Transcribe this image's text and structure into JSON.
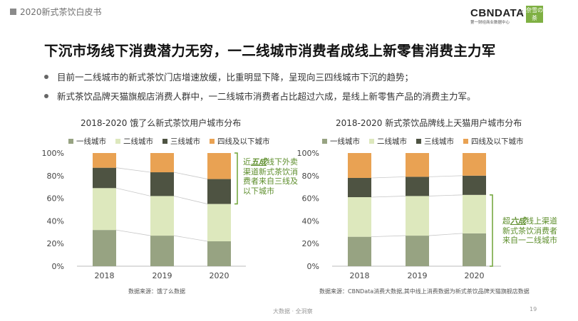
{
  "header": {
    "report_title": "2020新式茶饮白皮书",
    "logo_text": "CBNDATA",
    "logo_sub": "第一财经商业数据中心",
    "logo_x": "×",
    "brand_badge": "奈雪の茶"
  },
  "page_title": "下沉市场线下消费潜力无穷，一二线城市消费者成线上新零售消费主力军",
  "bullets": [
    "目前一二线城市的新式茶饮门店增速放缓，比重明显下降，呈现向三四线城市下沉的趋势；",
    "新式茶饮品牌天猫旗舰店消费人群中，一二线城市消费者占比超过六成，是线上新零售产品的消费主力军。"
  ],
  "colors": {
    "tier1": "#97a382",
    "tier2": "#dde8bd",
    "tier3": "#4e5342",
    "tier4": "#e9a253",
    "accent_green": "#6fa336"
  },
  "legend": [
    "一线城市",
    "二线城市",
    "三线城市",
    "四线及以下城市"
  ],
  "chart_data": [
    {
      "type": "bar",
      "stacked": true,
      "title": "2018-2020 饿了么新式茶饮用户城市分布",
      "categories": [
        "2018",
        "2019",
        "2020"
      ],
      "series": [
        {
          "name": "一线城市",
          "values": [
            32,
            27,
            22
          ]
        },
        {
          "name": "二线城市",
          "values": [
            37,
            35,
            33
          ]
        },
        {
          "name": "三线城市",
          "values": [
            18,
            21,
            22
          ]
        },
        {
          "name": "四线及以下城市",
          "values": [
            13,
            17,
            23
          ]
        }
      ],
      "ylim": [
        0,
        100
      ],
      "yticks": [
        "0%",
        "20%",
        "40%",
        "60%",
        "80%",
        "100%"
      ],
      "source": "数据来源：饿了么数据",
      "annotation": {
        "prefix": "近",
        "highlight": "五成",
        "rest": "线下外卖渠道新式茶饮消费者来自三线及以下城市"
      }
    },
    {
      "type": "bar",
      "stacked": true,
      "title": "2018-2020 新式茶饮品牌线上天猫用户城市分布",
      "categories": [
        "2018",
        "2019",
        "2020"
      ],
      "series": [
        {
          "name": "一线城市",
          "values": [
            26,
            27,
            29
          ]
        },
        {
          "name": "二线城市",
          "values": [
            35,
            35,
            34
          ]
        },
        {
          "name": "三线城市",
          "values": [
            17,
            17,
            17
          ]
        },
        {
          "name": "四线及以下城市",
          "values": [
            22,
            21,
            20
          ]
        }
      ],
      "ylim": [
        0,
        100
      ],
      "yticks": [
        "0%",
        "20%",
        "40%",
        "60%",
        "80%",
        "100%"
      ],
      "source": "数据来源：CBNData消费大数据,其中线上消费数据为新式茶饮品牌天猫旗舰店数据",
      "annotation": {
        "prefix": "超",
        "highlight": "六成",
        "rest": "线上渠道新式茶饮消费者来自一二线城市"
      }
    }
  ],
  "footer": {
    "text": "大数据 · 全洞察",
    "page": "19"
  }
}
